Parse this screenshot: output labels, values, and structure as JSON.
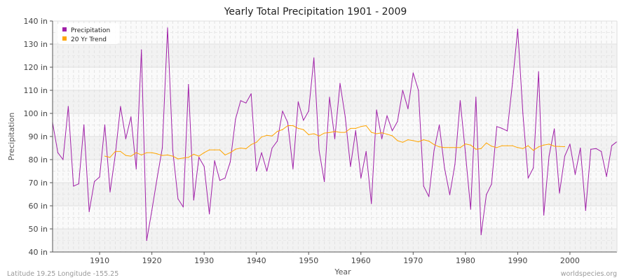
{
  "chart_data": {
    "type": "line",
    "title": "Yearly Total Precipitation 1901 - 2009",
    "xlabel": "Year",
    "ylabel": "Precipitation",
    "xlim": [
      1901,
      2009
    ],
    "ylim": [
      40,
      140
    ],
    "x_ticks": [
      "1910",
      "1920",
      "1930",
      "1940",
      "1950",
      "1960",
      "1970",
      "1980",
      "1990",
      "2000"
    ],
    "y_ticks": [
      "40 in",
      "50 in",
      "60 in",
      "70 in",
      "80 in",
      "90 in",
      "100 in",
      "110 in",
      "120 in",
      "130 in",
      "140 in"
    ],
    "grid": true,
    "legend_position": "top-left",
    "series": [
      {
        "name": "Precipitation",
        "color": "#a020a8",
        "x_start": 1901,
        "values": [
          96,
          83,
          80,
          103,
          68.5,
          69.5,
          95,
          57.5,
          70.5,
          72.5,
          95,
          66,
          82,
          103,
          89,
          98.5,
          76,
          127.5,
          45,
          58,
          72,
          85,
          137,
          84,
          63,
          59.5,
          112.5,
          62.5,
          81,
          77,
          56.5,
          79.5,
          71,
          72,
          79,
          97.5,
          105.5,
          104.5,
          108.5,
          75,
          83,
          75,
          85,
          88,
          101,
          96,
          76,
          105,
          97,
          101,
          124,
          84,
          70.5,
          107,
          89,
          113,
          98.5,
          77,
          92.5,
          72,
          83.5,
          61,
          101.5,
          89,
          99,
          92.5,
          96.5,
          110,
          102,
          117.5,
          110,
          68.5,
          64,
          84,
          95,
          76.4,
          64.8,
          78,
          105.5,
          83,
          58.5,
          107,
          47.5,
          64.8,
          69.4,
          94.3,
          93.5,
          92.4,
          113,
          136.5,
          100,
          72,
          76.4,
          118,
          56,
          81.5,
          93.3,
          65.5,
          81.5,
          86.7,
          73.6,
          85,
          58,
          84.5,
          84.8,
          83.5,
          72.7,
          86,
          87.8
        ]
      },
      {
        "name": "20 Yr Trend",
        "color": "#ffa500",
        "x_start": 1911,
        "values": [
          81.5,
          81,
          83.5,
          83.5,
          81.8,
          81.5,
          83,
          82,
          83,
          83,
          82.5,
          81.8,
          82,
          81.5,
          80.3,
          80.7,
          81,
          82.3,
          81.5,
          83,
          84.2,
          84.2,
          84.2,
          82,
          83,
          84.5,
          85,
          84.7,
          86.5,
          87.5,
          89.8,
          90.5,
          90.2,
          92.2,
          93,
          94.7,
          94.7,
          93.5,
          93,
          90.8,
          91.2,
          90.2,
          91.5,
          91.7,
          92.2,
          91.8,
          91.8,
          93.5,
          93.5,
          94.3,
          94.7,
          91.8,
          91.2,
          91.6,
          91,
          90.3,
          88.2,
          87.5,
          88.6,
          88.2,
          87.7,
          88.6,
          88,
          86.5,
          85.5,
          85.2,
          85.2,
          85.2,
          85.2,
          86.8,
          86.3,
          84.5,
          84.8,
          87.2,
          85.8,
          85.2,
          86,
          86,
          86,
          85.2,
          84.8,
          86,
          84,
          85.5,
          86.3,
          86.7,
          85.8,
          85.7,
          85.6
        ]
      }
    ]
  },
  "footer": {
    "location": "Latitude 19.25 Longitude -155.25",
    "source": "worldspecies.org"
  }
}
